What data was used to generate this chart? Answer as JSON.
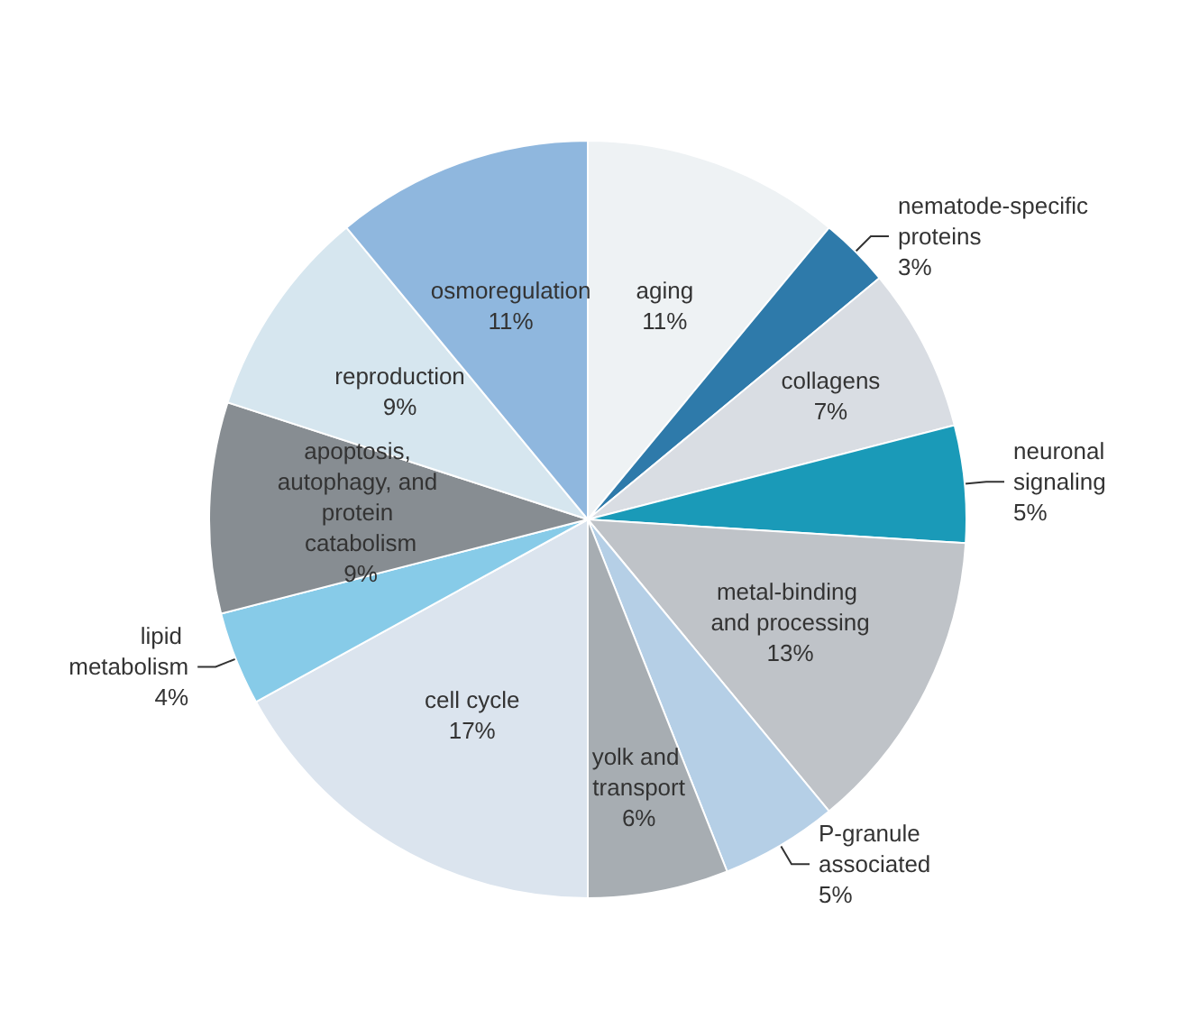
{
  "chart_data": {
    "type": "pie",
    "categories": [
      "aging",
      "nematode-specific proteins",
      "collagens",
      "neuronal signaling",
      "metal-binding and processing",
      "P-granule associated",
      "yolk and transport",
      "cell cycle",
      "lipid metabolism",
      "apoptosis, autophagy, and protein catabolism",
      "reproduction",
      "osmoregulation"
    ],
    "values": [
      11,
      3,
      7,
      5,
      13,
      5,
      6,
      17,
      4,
      9,
      9,
      11
    ],
    "value_labels": [
      "11%",
      "3%",
      "7%",
      "5%",
      "13%",
      "5%",
      "6%",
      "17%",
      "4%",
      "9%",
      "9%",
      "11%"
    ],
    "colors": [
      "#eef2f4",
      "#2e7aaa",
      "#d9dde3",
      "#1a9ab8",
      "#bfc3c8",
      "#b5cfe6",
      "#a7adb2",
      "#dbe4ee",
      "#87cbe8",
      "#878d92",
      "#d6e6ef",
      "#8fb7de"
    ],
    "legend": false
  }
}
